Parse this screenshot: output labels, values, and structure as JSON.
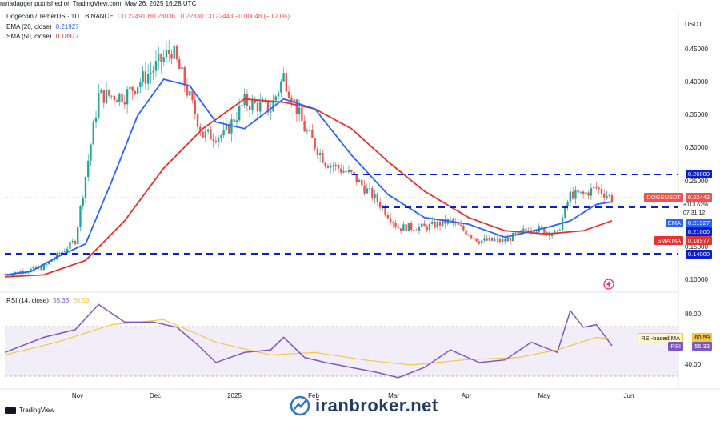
{
  "header": {
    "published": "ranadagger published on TradingView.com, May 26, 2025 16:28 UTC",
    "symbol_line": "Dogecoin / TetherUS · 1D · BINANCE",
    "ohlc": "O0.22491 H0.23036 L0.22330 C0.22443 −0.00048 (−0.21%)",
    "ema_label": "EMA (20, close)",
    "ema_value": "0.21927",
    "sma_label": "SMA (50, close)",
    "sma_value": "0.18977",
    "currency": "USDT"
  },
  "price_axis": {
    "ticks": [
      "0.45000",
      "0.40000",
      "0.35000",
      "0.30000",
      "0.25000",
      "0.15000",
      "0.10000"
    ]
  },
  "price_labels": {
    "level_260": "0.26000",
    "symbol_tag": "DOGEUSDT",
    "last_price": "0.22443",
    "change_pct": "+113.62%",
    "countdown": "07:31:12",
    "level_210": "0.21000",
    "ema_tag": "EMA",
    "ema_val": "0.21927",
    "sma_tag": "SMA:MA",
    "sma_val": "0.18977",
    "level_140": "0.14000"
  },
  "rsi": {
    "legend": "RSI (14, close)",
    "value": "55.33",
    "ma_value": "60.59",
    "axis_ticks": [
      "80.00",
      "40.00"
    ],
    "ma_tag": "RSI-based MA",
    "ma_tag_val": "60.59",
    "rsi_tag": "RSI",
    "rsi_tag_val": "55.33"
  },
  "x_axis": {
    "ticks": [
      "Nov",
      "Dec",
      "2025",
      "Feb",
      "Mar",
      "Apr",
      "May",
      "Jun"
    ]
  },
  "footer": {
    "brand": "TradingView",
    "watermark": "iranbroker.net"
  },
  "colors": {
    "up": "#26a69a",
    "down": "#ef5350",
    "ema": "#2962ff",
    "sma": "#e5322d",
    "level": "#0a1fd1",
    "rsi": "#7e57c2",
    "rsi_ma": "#f5c542"
  },
  "chart_data": [
    {
      "type": "candlestick",
      "title": "Dogecoin / TetherUS · 1D · BINANCE",
      "ylabel": "USDT",
      "ylim": [
        0.08,
        0.49
      ],
      "y_ticks": [
        0.1,
        0.15,
        0.25,
        0.3,
        0.35,
        0.4,
        0.45
      ],
      "series": [
        {
          "name": "EMA (20, close)",
          "points": [
            [
              "2024-10-05",
              0.108
            ],
            [
              "2024-10-15",
              0.113
            ],
            [
              "2024-10-25",
              0.135
            ],
            [
              "2024-11-05",
              0.155
            ],
            [
              "2024-11-15",
              0.25
            ],
            [
              "2024-11-25",
              0.35
            ],
            [
              "2024-12-05",
              0.405
            ],
            [
              "2024-12-15",
              0.395
            ],
            [
              "2024-12-25",
              0.34
            ],
            [
              "2025-01-05",
              0.33
            ],
            [
              "2025-01-20",
              0.375
            ],
            [
              "2025-02-01",
              0.36
            ],
            [
              "2025-02-15",
              0.29
            ],
            [
              "2025-03-01",
              0.23
            ],
            [
              "2025-03-15",
              0.195
            ],
            [
              "2025-04-01",
              0.185
            ],
            [
              "2025-04-15",
              0.165
            ],
            [
              "2025-05-01",
              0.18
            ],
            [
              "2025-05-10",
              0.19
            ],
            [
              "2025-05-20",
              0.215
            ],
            [
              "2025-05-26",
              0.219
            ]
          ]
        },
        {
          "name": "SMA (50, close)",
          "points": [
            [
              "2024-10-05",
              0.105
            ],
            [
              "2024-10-20",
              0.108
            ],
            [
              "2024-11-05",
              0.13
            ],
            [
              "2024-11-20",
              0.19
            ],
            [
              "2024-12-05",
              0.27
            ],
            [
              "2024-12-20",
              0.33
            ],
            [
              "2025-01-05",
              0.375
            ],
            [
              "2025-01-20",
              0.37
            ],
            [
              "2025-02-01",
              0.36
            ],
            [
              "2025-02-15",
              0.33
            ],
            [
              "2025-03-01",
              0.28
            ],
            [
              "2025-03-15",
              0.235
            ],
            [
              "2025-04-01",
              0.195
            ],
            [
              "2025-04-15",
              0.175
            ],
            [
              "2025-05-01",
              0.17
            ],
            [
              "2025-05-15",
              0.175
            ],
            [
              "2025-05-26",
              0.19
            ]
          ]
        },
        {
          "name": "Close",
          "points": [
            [
              "2024-10-05",
              0.108
            ],
            [
              "2024-10-20",
              0.12
            ],
            [
              "2024-11-01",
              0.16
            ],
            [
              "2024-11-10",
              0.38
            ],
            [
              "2024-11-20",
              0.38
            ],
            [
              "2024-12-01",
              0.42
            ],
            [
              "2024-12-08",
              0.45
            ],
            [
              "2024-12-12",
              0.41
            ],
            [
              "2024-12-20",
              0.32
            ],
            [
              "2024-12-28",
              0.32
            ],
            [
              "2025-01-05",
              0.37
            ],
            [
              "2025-01-15",
              0.36
            ],
            [
              "2025-01-20",
              0.41
            ],
            [
              "2025-01-28",
              0.33
            ],
            [
              "2025-02-05",
              0.28
            ],
            [
              "2025-02-15",
              0.26
            ],
            [
              "2025-02-25",
              0.22
            ],
            [
              "2025-03-05",
              0.18
            ],
            [
              "2025-03-15",
              0.18
            ],
            [
              "2025-03-25",
              0.19
            ],
            [
              "2025-04-05",
              0.16
            ],
            [
              "2025-04-15",
              0.16
            ],
            [
              "2025-04-25",
              0.18
            ],
            [
              "2025-05-05",
              0.17
            ],
            [
              "2025-05-10",
              0.23
            ],
            [
              "2025-05-15",
              0.23
            ],
            [
              "2025-05-20",
              0.24
            ],
            [
              "2025-05-26",
              0.224
            ]
          ]
        }
      ],
      "horizontal_levels": [
        0.26,
        0.21,
        0.14
      ]
    },
    {
      "type": "line",
      "title": "RSI (14, close)",
      "ylim": [
        20,
        95
      ],
      "y_ticks": [
        40,
        80
      ],
      "series": [
        {
          "name": "RSI",
          "points": [
            [
              "2024-10-05",
              50
            ],
            [
              "2024-10-20",
              62
            ],
            [
              "2024-11-01",
              68
            ],
            [
              "2024-11-10",
              88
            ],
            [
              "2024-11-20",
              74
            ],
            [
              "2024-12-01",
              74
            ],
            [
              "2024-12-10",
              70
            ],
            [
              "2024-12-18",
              56
            ],
            [
              "2024-12-25",
              42
            ],
            [
              "2025-01-05",
              50
            ],
            [
              "2025-01-15",
              52
            ],
            [
              "2025-01-20",
              62
            ],
            [
              "2025-01-28",
              46
            ],
            [
              "2025-02-05",
              42
            ],
            [
              "2025-02-15",
              38
            ],
            [
              "2025-02-25",
              34
            ],
            [
              "2025-03-05",
              30
            ],
            [
              "2025-03-15",
              38
            ],
            [
              "2025-03-25",
              52
            ],
            [
              "2025-04-05",
              42
            ],
            [
              "2025-04-15",
              44
            ],
            [
              "2025-04-25",
              58
            ],
            [
              "2025-05-05",
              50
            ],
            [
              "2025-05-10",
              83
            ],
            [
              "2025-05-15",
              70
            ],
            [
              "2025-05-20",
              72
            ],
            [
              "2025-05-26",
              55.33
            ]
          ]
        },
        {
          "name": "RSI-based MA",
          "points": [
            [
              "2024-10-05",
              48
            ],
            [
              "2024-10-25",
              58
            ],
            [
              "2024-11-15",
              72
            ],
            [
              "2024-12-05",
              76
            ],
            [
              "2024-12-25",
              58
            ],
            [
              "2025-01-15",
              48
            ],
            [
              "2025-02-01",
              50
            ],
            [
              "2025-02-20",
              44
            ],
            [
              "2025-03-10",
              40
            ],
            [
              "2025-03-30",
              44
            ],
            [
              "2025-04-20",
              46
            ],
            [
              "2025-05-05",
              52
            ],
            [
              "2025-05-20",
              62
            ],
            [
              "2025-05-26",
              60.59
            ]
          ]
        }
      ]
    }
  ]
}
